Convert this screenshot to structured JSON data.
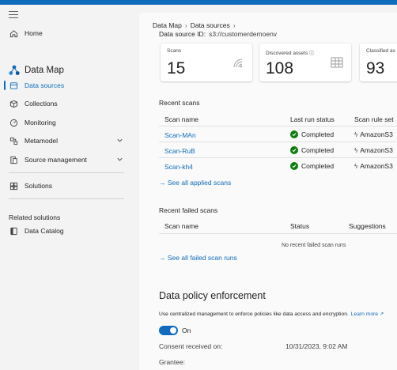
{
  "sidebar": {
    "items": [
      {
        "label": "Home"
      },
      {
        "label": "Data sources"
      },
      {
        "label": "Collections"
      },
      {
        "label": "Monitoring"
      },
      {
        "label": "Metamodel"
      },
      {
        "label": "Source management"
      },
      {
        "label": "Solutions"
      }
    ],
    "section_title": "Data Map",
    "related_title": "Related solutions",
    "related_items": [
      {
        "label": "Data Catalog"
      }
    ]
  },
  "breadcrumb": {
    "items": [
      "Data Map",
      "Data sources"
    ]
  },
  "data_source": {
    "label": "Data source ID:",
    "value": "s3://customerdemoenv"
  },
  "cards": [
    {
      "title": "Scans",
      "value": "15"
    },
    {
      "title": "Discovered assets",
      "value": "108"
    },
    {
      "title": "Classified as",
      "value": "93"
    }
  ],
  "recent_scans": {
    "title": "Recent scans",
    "headers": [
      "Scan name",
      "Last run status",
      "Scan rule set"
    ],
    "rows": [
      {
        "name": "Scan-MAn",
        "status": "Completed",
        "ruleset": "AmazonS3"
      },
      {
        "name": "Scan-RuB",
        "status": "Completed",
        "ruleset": "AmazonS3"
      },
      {
        "name": "Scan-kh4",
        "status": "Completed",
        "ruleset": "AmazonS3"
      }
    ],
    "see_all": "See all applied scans"
  },
  "failed_scans": {
    "title": "Recent failed scans",
    "headers": [
      "Scan name",
      "Status",
      "Suggestions"
    ],
    "empty": "No recent failed scan runs",
    "see_all": "See all failed scan runs"
  },
  "policy": {
    "title": "Data policy enforcement",
    "description": "Use centralized management to enforce policies like data access and encryption.",
    "learn_more": "Learn more",
    "toggle_label": "On",
    "consent_label": "Consent received on:",
    "consent_value": "10/31/2023, 9:02 AM",
    "grantee_label": "Grantee:"
  },
  "colors": {
    "accent": "#0f6cbd",
    "success": "#107c10"
  }
}
